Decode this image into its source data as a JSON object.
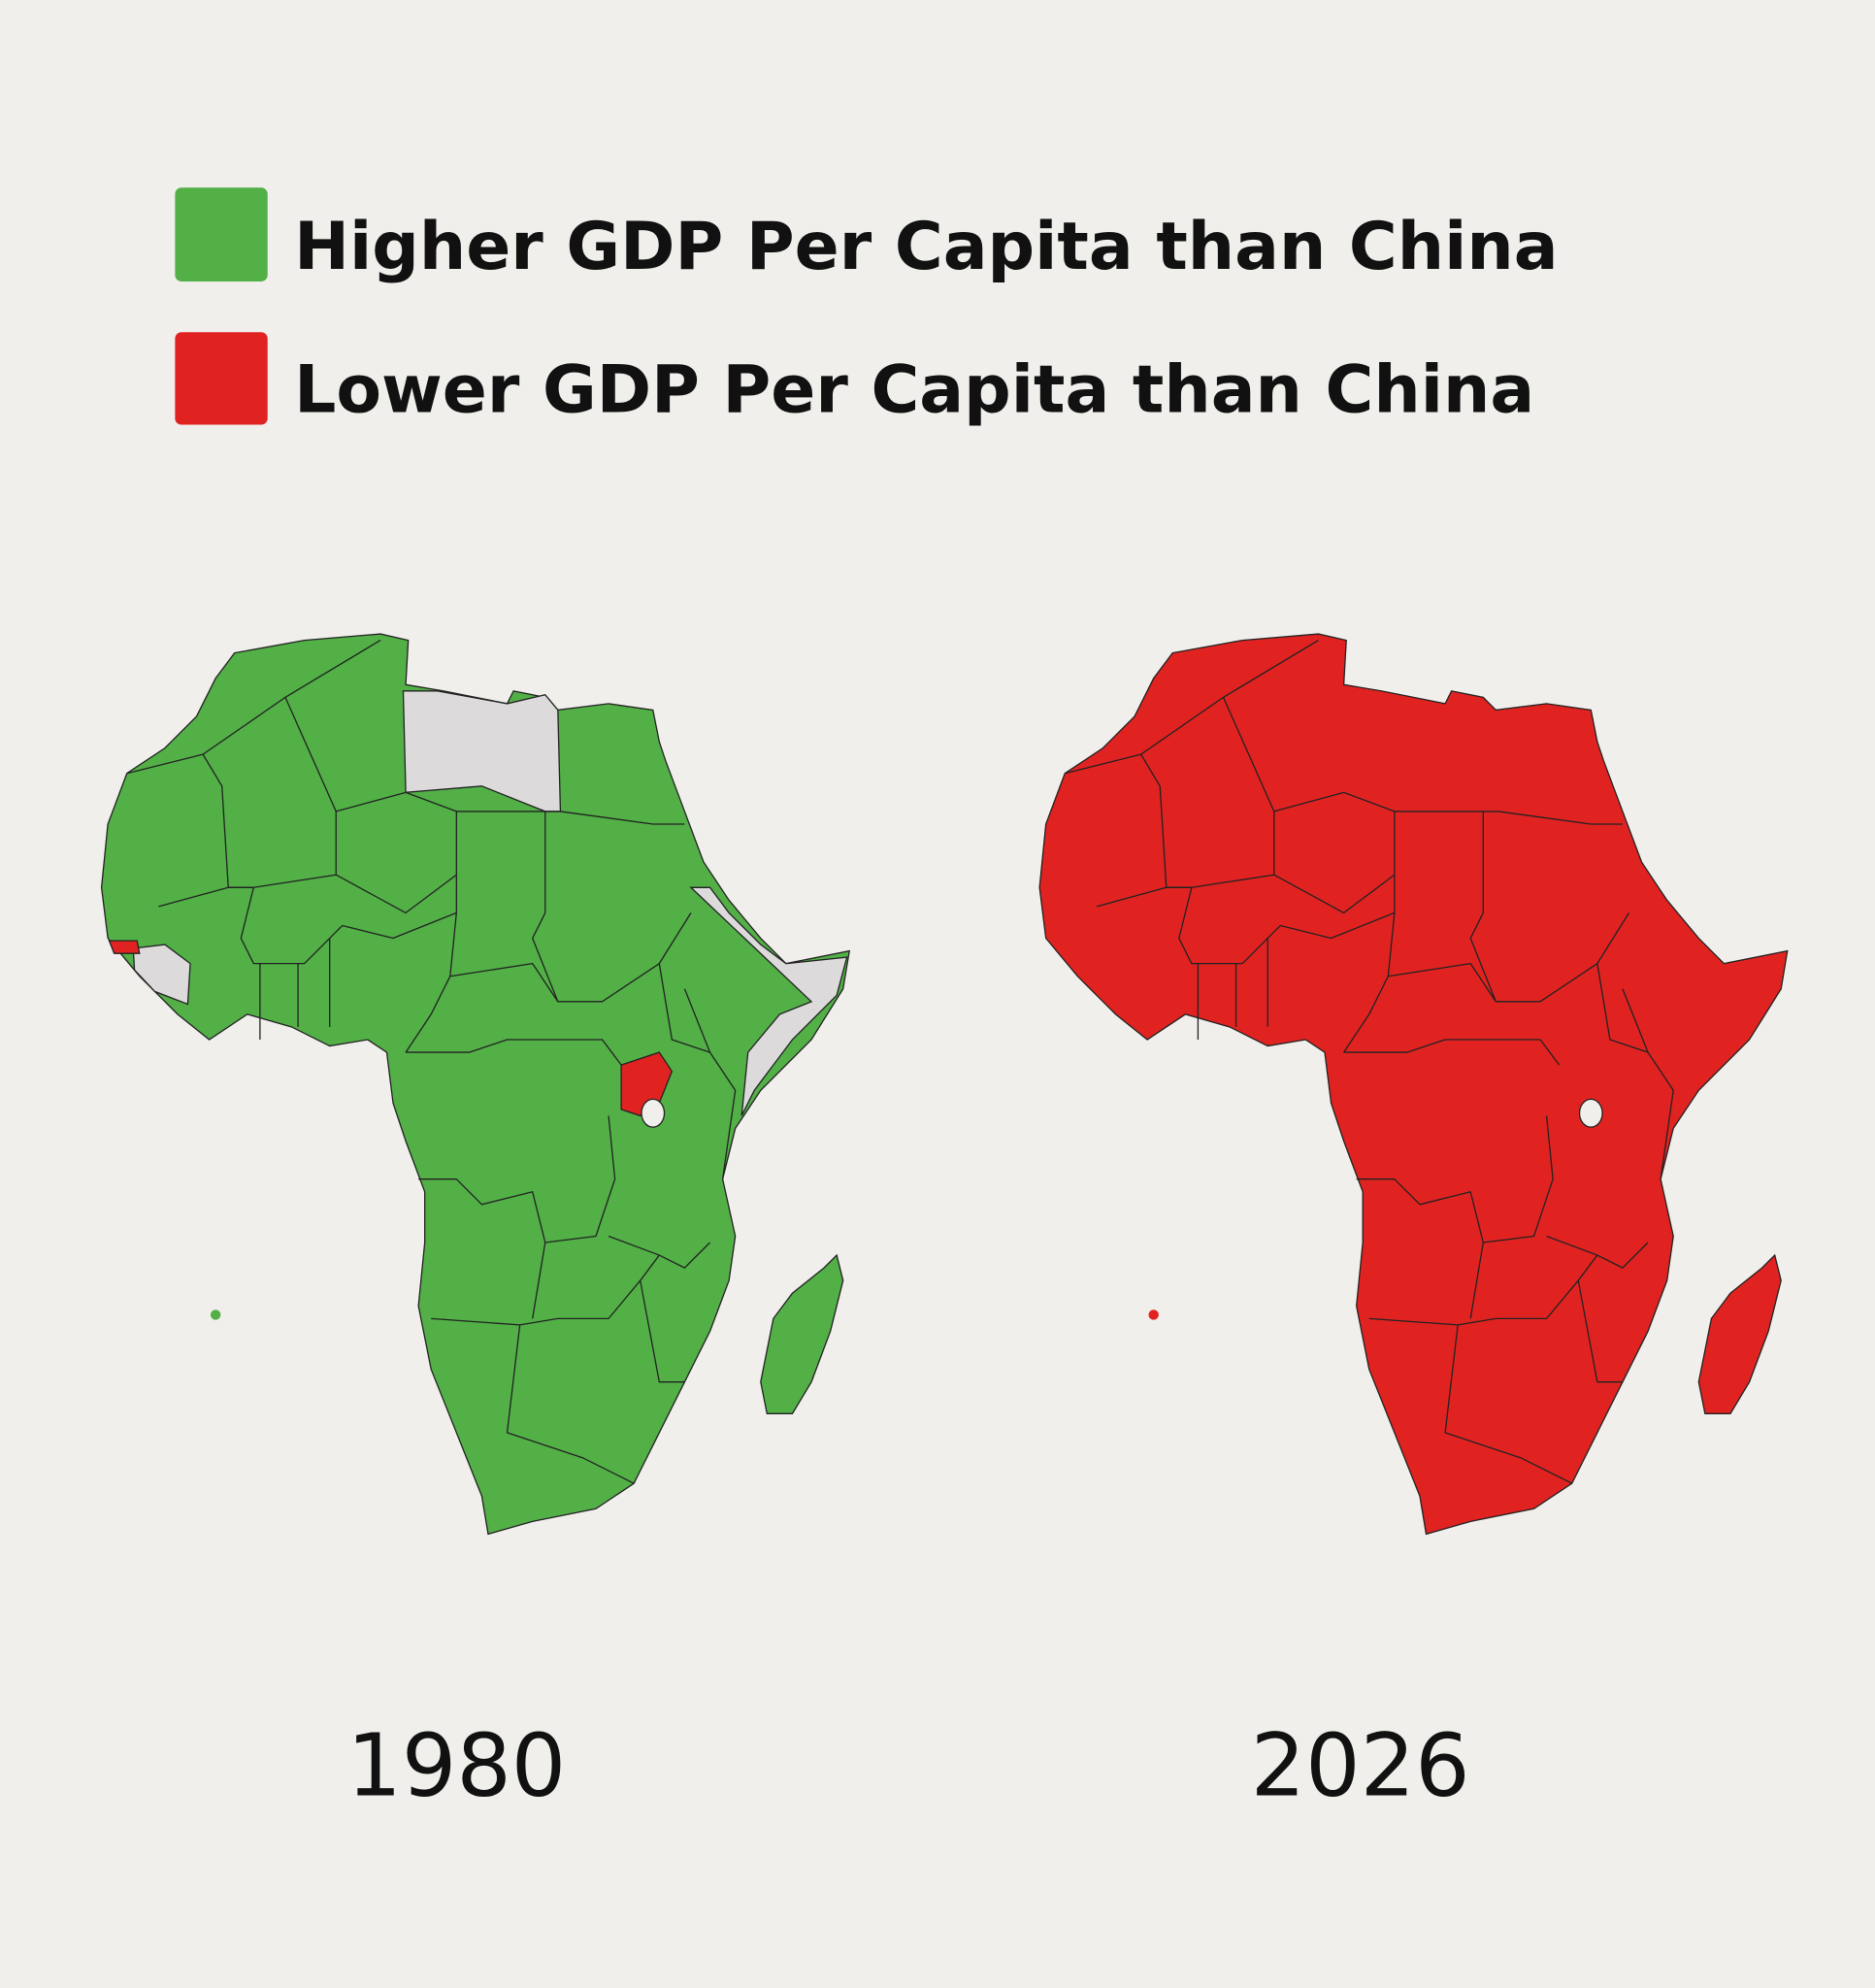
{
  "legend": [
    {
      "label": "Higher GDP Per Capita than China",
      "color": "#52b047"
    },
    {
      "label": "Lower GDP Per Capita than China",
      "color": "#e02321"
    }
  ],
  "maps": [
    {
      "year": "1980"
    },
    {
      "year": "2026"
    }
  ]
}
